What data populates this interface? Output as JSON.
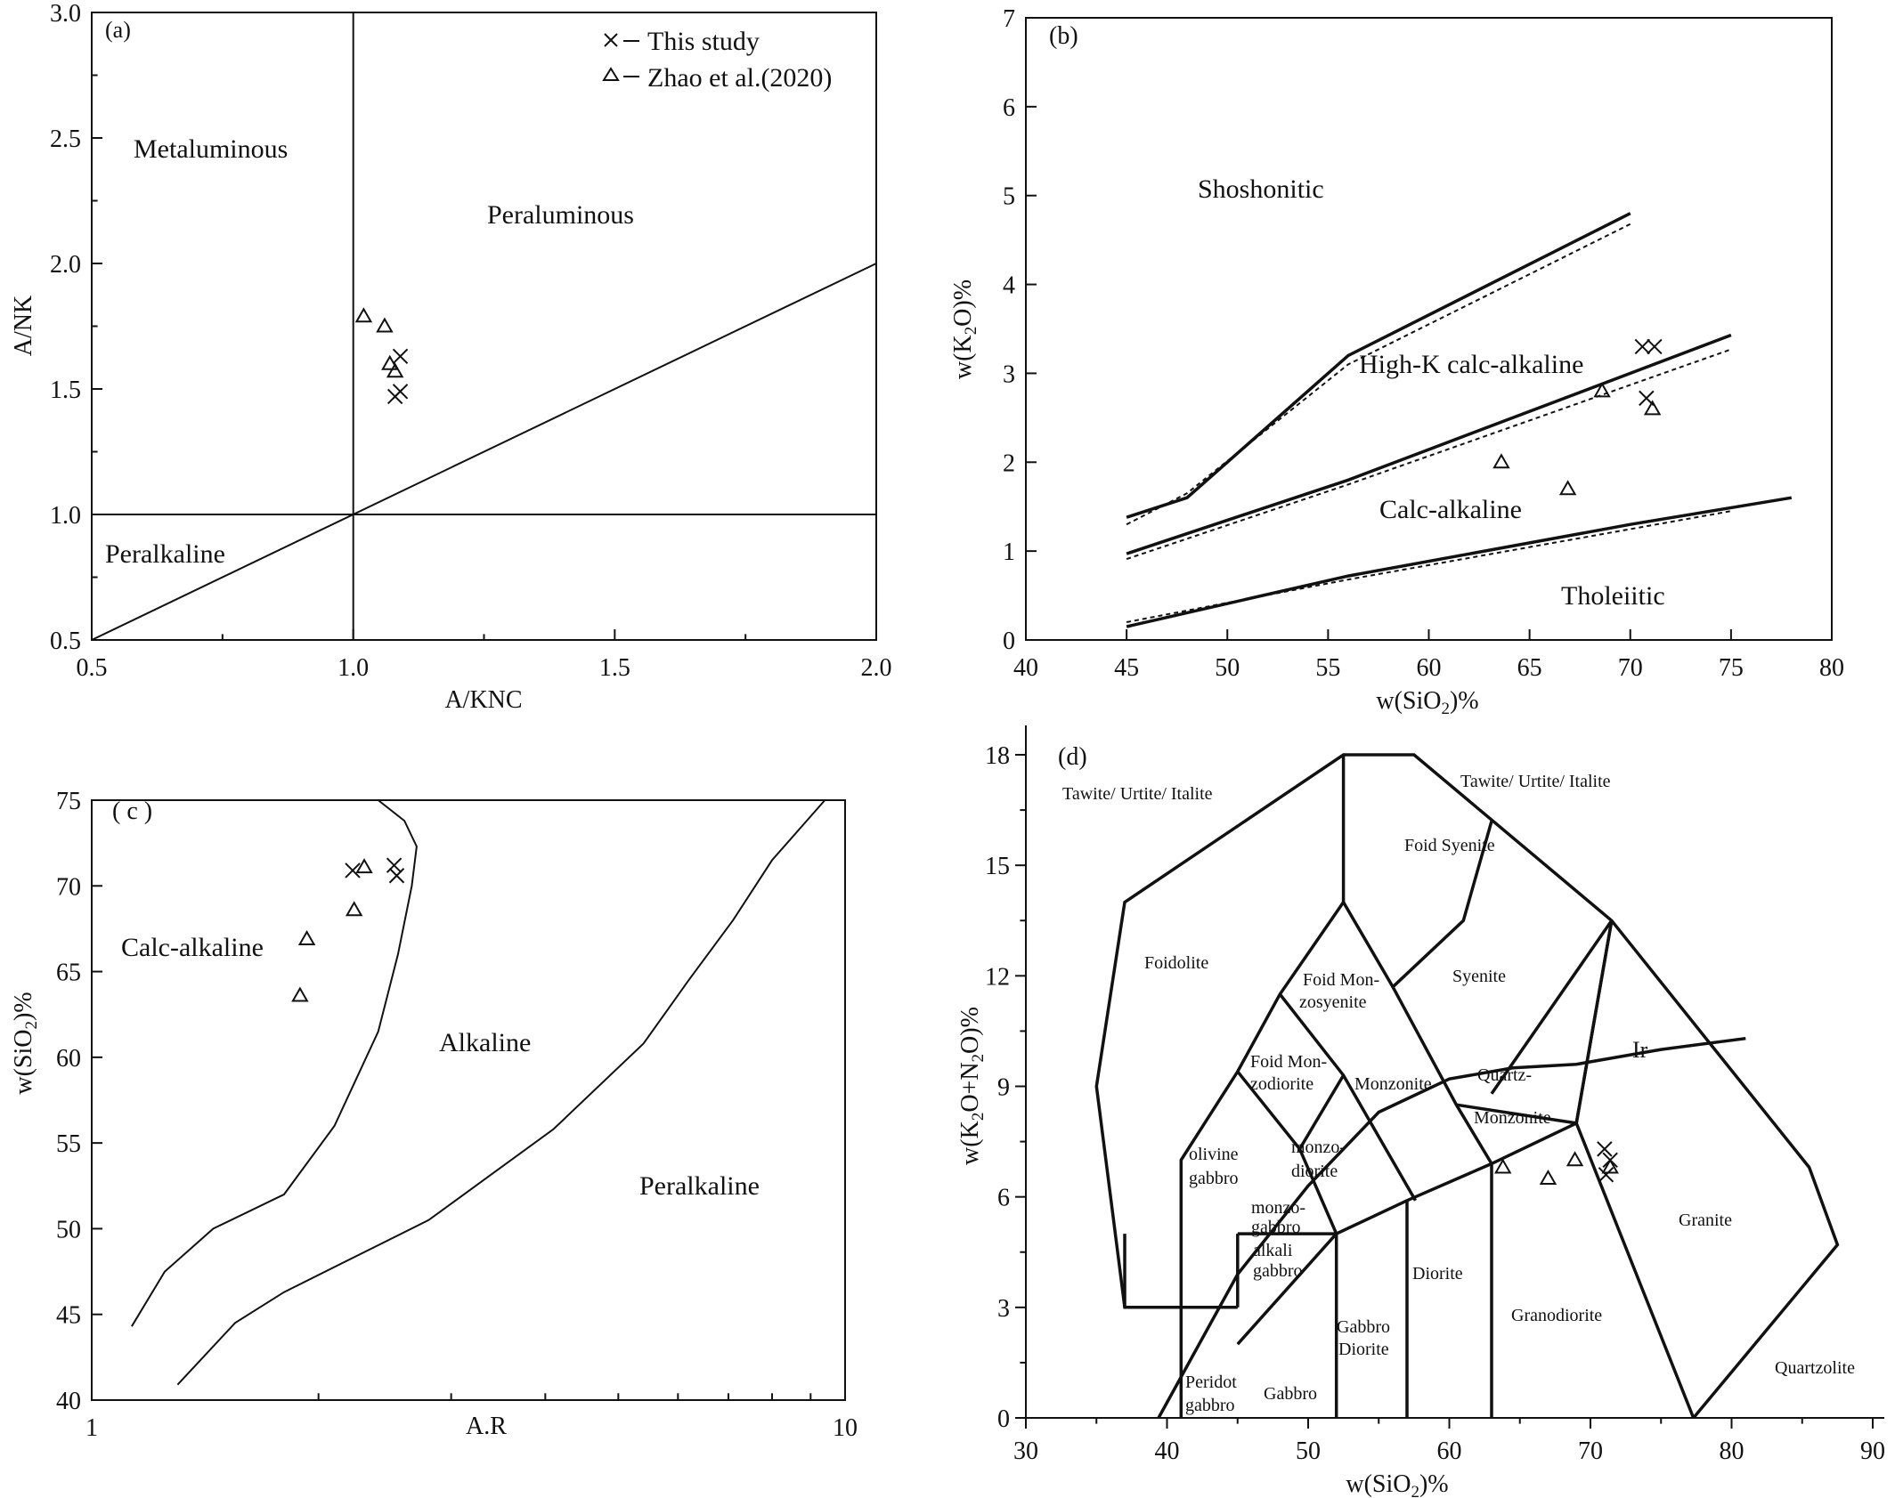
{
  "chart_data": [
    {
      "panel": "(a)",
      "type": "scatter",
      "xlabel": "A/KNC",
      "ylabel": "A/NK",
      "xlim": [
        0.5,
        2.0
      ],
      "ylim": [
        0.5,
        3.0
      ],
      "xticks": [
        "0.5",
        "1.0",
        "1.5",
        "2.0"
      ],
      "yticks": [
        "0.5",
        "1.0",
        "1.5",
        "2.0",
        "2.5",
        "3.0"
      ],
      "legend": [
        {
          "marker": "cross",
          "label": "This study"
        },
        {
          "marker": "triangle",
          "label": "Zhao et al.(2020)"
        }
      ],
      "regions": [
        "Metaluminous",
        "Peraluminous",
        "Peralkaline"
      ],
      "series": [
        {
          "marker": "cross",
          "points": [
            [
              1.09,
              1.63
            ],
            [
              1.09,
              1.49
            ],
            [
              1.08,
              1.47
            ]
          ]
        },
        {
          "marker": "triangle",
          "points": [
            [
              1.02,
              1.79
            ],
            [
              1.06,
              1.75
            ],
            [
              1.07,
              1.6
            ],
            [
              1.08,
              1.57
            ]
          ]
        }
      ]
    },
    {
      "panel": "(b)",
      "type": "scatter",
      "xlabel": "w(SiO2)%",
      "ylabel": "w(K2O)%",
      "xlim": [
        40,
        80
      ],
      "ylim": [
        0,
        7
      ],
      "xticks": [
        "40",
        "45",
        "50",
        "55",
        "60",
        "65",
        "70",
        "75",
        "80"
      ],
      "yticks": [
        "0",
        "1",
        "2",
        "3",
        "4",
        "5",
        "6",
        "7"
      ],
      "regions": [
        "Shoshonitic",
        "High-K calc-alkaline",
        "Calc-alkaline",
        "Tholeiitic"
      ],
      "series": [
        {
          "marker": "cross",
          "points": [
            [
              70.6,
              3.3
            ],
            [
              71.2,
              3.3
            ],
            [
              70.8,
              2.72
            ]
          ]
        },
        {
          "marker": "triangle",
          "points": [
            [
              68.6,
              2.8
            ],
            [
              71.1,
              2.6
            ],
            [
              63.6,
              2.0
            ],
            [
              66.9,
              1.7
            ]
          ]
        }
      ]
    },
    {
      "panel": "( c )",
      "type": "scatter",
      "xlabel": "A.R",
      "ylabel": "w(SiO2)%",
      "xscale": "log",
      "xlim": [
        1,
        10
      ],
      "ylim": [
        40,
        75
      ],
      "xticks": [
        "1",
        "10"
      ],
      "yticks": [
        "40",
        "45",
        "50",
        "55",
        "60",
        "65",
        "70",
        "75"
      ],
      "regions": [
        "Calc-alkaline",
        "Alkaline",
        "Peralkaline"
      ],
      "series": [
        {
          "marker": "cross",
          "points": [
            [
              2.22,
              70.9
            ],
            [
              2.52,
              71.2
            ],
            [
              2.54,
              70.6
            ]
          ]
        },
        {
          "marker": "triangle",
          "points": [
            [
              2.3,
              71.1
            ],
            [
              2.23,
              68.6
            ],
            [
              1.93,
              66.9
            ],
            [
              1.89,
              63.6
            ]
          ]
        }
      ]
    },
    {
      "panel": "(d)",
      "type": "scatter",
      "xlabel": "w(SiO2)%",
      "ylabel": "w(K2O+N2O)%",
      "xlim": [
        30,
        92
      ],
      "ylim": [
        0,
        18.8
      ],
      "xticks": [
        "30",
        "40",
        "50",
        "60",
        "70",
        "80",
        "90"
      ],
      "yticks": [
        "0",
        "3",
        "6",
        "9",
        "12",
        "15",
        "18"
      ],
      "series": [
        {
          "marker": "cross",
          "points": [
            [
              71.0,
              7.3
            ],
            [
              71.4,
              7.0
            ],
            [
              71.1,
              6.6
            ]
          ]
        },
        {
          "marker": "triangle",
          "points": [
            [
              63.8,
              6.8
            ],
            [
              67.0,
              6.5
            ],
            [
              68.9,
              7.0
            ],
            [
              71.4,
              6.8
            ]
          ]
        }
      ]
    }
  ],
  "panels": {
    "a": {
      "tag": "(a)",
      "xlabel": "A/KNC",
      "ylabel": "A/NK",
      "legend_cross": "This study",
      "legend_triangle": "Zhao et al.(2020)",
      "region_metaluminous": "Metaluminous",
      "region_peraluminous": "Peraluminous",
      "region_peralkaline": "Peralkaline"
    },
    "b": {
      "tag": "(b)",
      "region_shoshonitic": "Shoshonitic",
      "region_highk": "High-K  calc-alkaline",
      "region_calc": "Calc-alkaline",
      "region_thol": "Tholeiitic"
    },
    "c": {
      "tag": "( c )",
      "xlabel": "A.R",
      "region_calc": "Calc-alkaline",
      "region_alk": "Alkaline",
      "region_peralk": "Peralkaline"
    },
    "d": {
      "tag": "(d)",
      "label_tawite_left": "Tawite/ Urtite/ Italite",
      "label_tawite_right": "Tawite/ Urtite/ Italite",
      "label_foid_syenite": "Foid Syenite",
      "label_foidolite": "Foidolite",
      "label_foid_mon_1": "Foid Mon-",
      "label_foid_mon_2": "zosyenite",
      "label_syenite": "Syenite",
      "label_foid_monzo_1": "Foid Mon-",
      "label_foid_monzo_2": "zodiorite",
      "label_monzonite": "Monzonite",
      "label_quartz_1": "Quartz-",
      "label_quartz_2": "Monzonite",
      "label_ir": "Ir",
      "label_olivine_1": "olivine",
      "label_olivine_2": "gabbro",
      "label_monzodiorite_1": "monzo-",
      "label_monzodiorite_2": "diorite",
      "label_monzogabbro_1": "monzo-",
      "label_monzogabbro_2": "gabbro",
      "label_alkali_1": "alkali",
      "label_alkali_2": "gabbro",
      "label_granite": "Granite",
      "label_diorite": "Diorite",
      "label_granodiorite": "Granodiorite",
      "label_gabbro_diorite_1": "Gabbro",
      "label_gabbro_diorite_2": "Diorite",
      "label_peridot_1": "Peridot",
      "label_peridot_2": "gabbro",
      "label_gabbro": "Gabbro",
      "label_quartzolite": "Quartzolite"
    }
  }
}
